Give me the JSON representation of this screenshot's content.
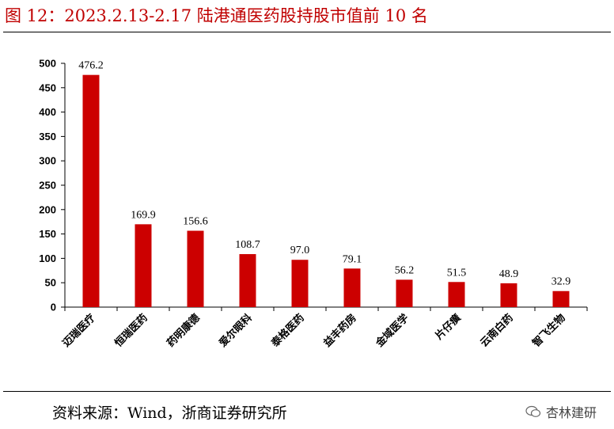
{
  "figure": {
    "title": "图 12：2023.2.13-2.17 陆港通医药股持股市值前 10 名",
    "source": "资料来源：Wind，浙商证券研究所",
    "watermark": "杏林建研"
  },
  "colors": {
    "bar": "#cc0000",
    "title": "#c00000",
    "axis": "#000000"
  },
  "chart_data": {
    "type": "bar",
    "categories": [
      "迈瑞医疗",
      "恒瑞医药",
      "药明康德",
      "爱尔眼科",
      "泰格医药",
      "益丰药房",
      "金域医学",
      "片仔癀",
      "云南白药",
      "智飞生物"
    ],
    "values": [
      476.2,
      169.9,
      156.6,
      108.7,
      97.0,
      79.1,
      56.2,
      51.5,
      48.9,
      32.9
    ],
    "data_labels": [
      "476.2",
      "169.9",
      "156.6",
      "108.7",
      "97.0",
      "79.1",
      "56.2",
      "51.5",
      "48.9",
      "32.9"
    ],
    "yticks": [
      0,
      50,
      100,
      150,
      200,
      250,
      300,
      350,
      400,
      450,
      500
    ],
    "ylim": [
      0,
      500
    ],
    "grid": false,
    "legend": "none"
  }
}
